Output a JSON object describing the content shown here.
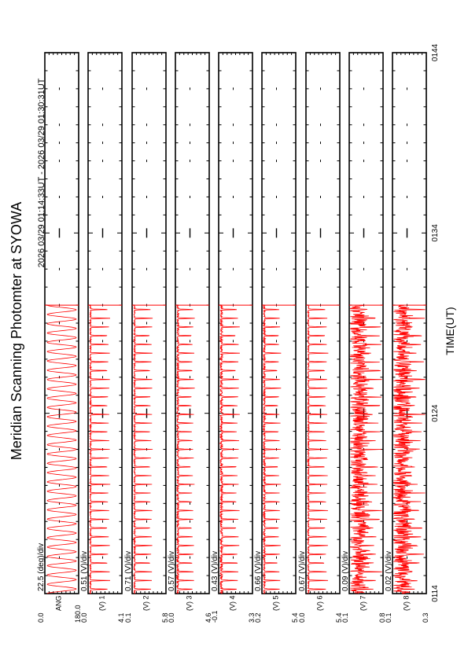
{
  "page": {
    "title": "Meridian Scanning Photomter at SYOWA",
    "time_range": "2026 03/29 01:14:33UT - 2026 03/29 01:30:31UT",
    "xlabel": "TIME(UT)"
  },
  "chart_data": {
    "type": "line",
    "title": "Meridian Scanning Photomter at SYOWA",
    "subtitle": "2026 03/29 01:14:33UT - 2026 03/29 01:30:31UT",
    "xlabel": "TIME(UT)",
    "x_ticks": [
      "0114",
      "0124",
      "0134",
      "0144"
    ],
    "x_tick_values_min": [
      0,
      10,
      20,
      30
    ],
    "xlim_min": [
      0,
      30
    ],
    "data_end_min": 16.0,
    "grid": false,
    "line_color": "#ff0000",
    "panels": [
      {
        "label": "ANG",
        "scale": "22.5 (deg)/div",
        "ymin": "0.0",
        "ymax": "180.0",
        "ylim": [
          0,
          180
        ],
        "kind": "scan",
        "oscillations": 31,
        "noise": 0
      },
      {
        "label": "(V) 1",
        "scale": "0.51 (V)/div",
        "ymin": "0.0",
        "ymax": "4.1",
        "ylim": [
          0,
          4.1
        ],
        "kind": "spike",
        "oscillations": 33,
        "spike_height": 0.6,
        "base": 0.05,
        "noise": 0.02
      },
      {
        "label": "(V) 2",
        "scale": "0.71 (V)/div",
        "ymin": "0.1",
        "ymax": "5.8",
        "ylim": [
          0.1,
          5.8
        ],
        "kind": "spike",
        "oscillations": 33,
        "spike_height": 0.55,
        "base": 0.05,
        "noise": 0.02
      },
      {
        "label": "(V) 3",
        "scale": "0.57 (V)/div",
        "ymin": "0.0",
        "ymax": "4.6",
        "ylim": [
          0,
          4.6
        ],
        "kind": "spike",
        "oscillations": 33,
        "spike_height": 0.5,
        "base": 0.05,
        "noise": 0.03
      },
      {
        "label": "(V) 4",
        "scale": "0.43 (V)/div",
        "ymin": "-0.1",
        "ymax": "3.3",
        "ylim": [
          -0.1,
          3.3
        ],
        "kind": "spike",
        "oscillations": 33,
        "spike_height": 0.55,
        "base": 0.06,
        "noise": 0.04
      },
      {
        "label": "(V) 5",
        "scale": "0.66 (V)/div",
        "ymin": "0.2",
        "ymax": "5.4",
        "ylim": [
          0.2,
          5.4
        ],
        "kind": "spike",
        "oscillations": 33,
        "spike_height": 0.5,
        "base": 0.05,
        "noise": 0.03
      },
      {
        "label": "(V) 6",
        "scale": "0.67 (V)/div",
        "ymin": "0.0",
        "ymax": "5.4",
        "ylim": [
          0,
          5.4
        ],
        "kind": "spike",
        "oscillations": 33,
        "spike_height": 0.6,
        "base": 0.05,
        "noise": 0.02
      },
      {
        "label": "(V) 7",
        "scale": "0.09 (V)/div",
        "ymin": "0.1",
        "ymax": "0.8",
        "ylim": [
          0.1,
          0.8
        ],
        "kind": "noisy",
        "oscillations": 33,
        "spike_height": 0.55,
        "base": 0.15,
        "noise": 0.25
      },
      {
        "label": "(V) 8",
        "scale": "0.02 (V)/div",
        "ymin": "0.1",
        "ymax": "0.3",
        "ylim": [
          0.1,
          0.3
        ],
        "kind": "noisy",
        "oscillations": 33,
        "spike_height": 0.55,
        "base": 0.15,
        "noise": 0.25
      }
    ]
  }
}
